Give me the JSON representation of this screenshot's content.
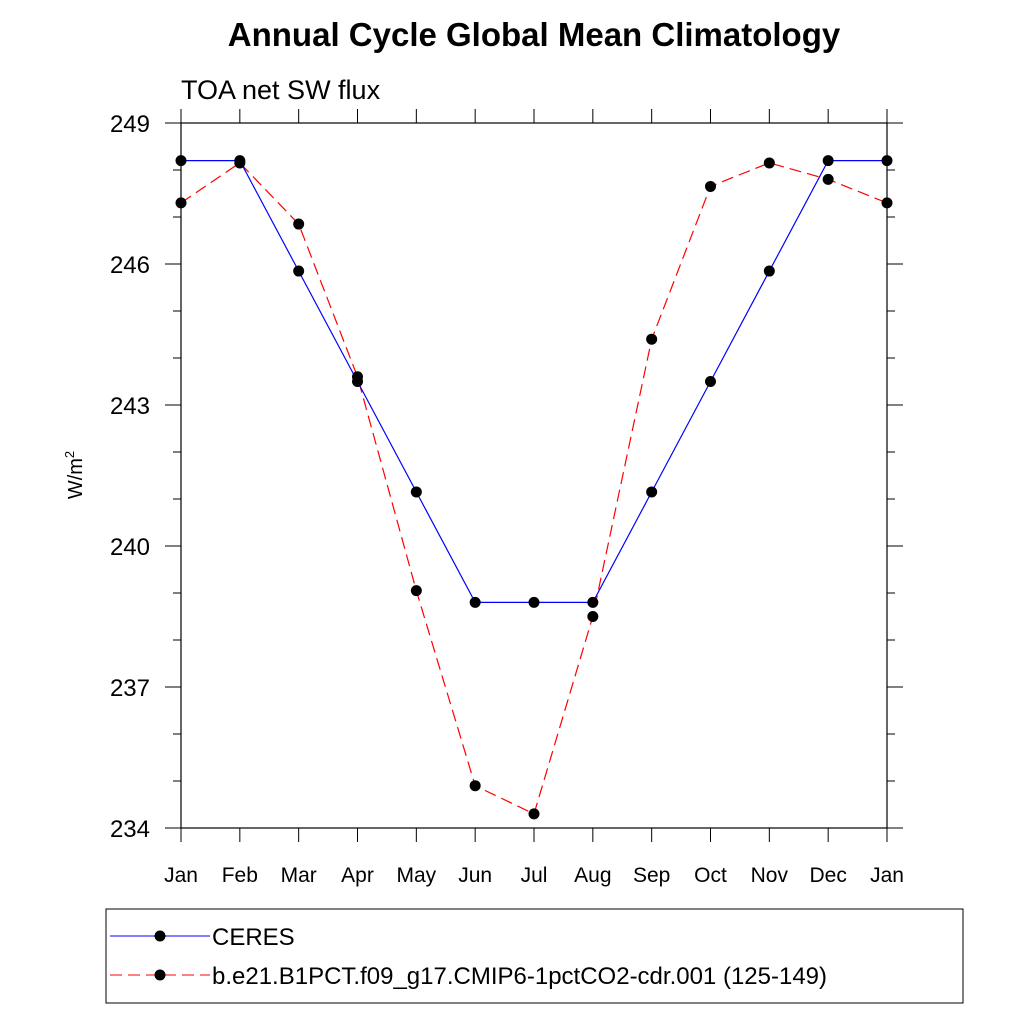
{
  "chart_data": {
    "type": "line",
    "title": "Annual Cycle Global Mean Climatology",
    "subtitle": "TOA net SW flux",
    "ylabel": "W/m",
    "ylabel_superscript": "2",
    "ylim": [
      234,
      249
    ],
    "yticks": [
      234,
      237,
      240,
      243,
      246,
      249
    ],
    "y_minor_step": 1,
    "categories": [
      "Jan",
      "Feb",
      "Mar",
      "Apr",
      "May",
      "Jun",
      "Jul",
      "Aug",
      "Sep",
      "Oct",
      "Nov",
      "Dec",
      "Jan"
    ],
    "series": [
      {
        "name": "CERES",
        "color": "#0000ff",
        "dash": "solid",
        "values": [
          248.2,
          248.2,
          245.85,
          243.5,
          241.15,
          238.8,
          238.8,
          238.8,
          241.15,
          243.5,
          245.85,
          248.2,
          248.2
        ]
      },
      {
        "name": "b.e21.B1PCT.f09_g17.CMIP6-1pctCO2-cdr.001 (125-149)",
        "color": "#ff0000",
        "dash": "dashed",
        "values": [
          247.3,
          248.15,
          246.85,
          243.6,
          239.05,
          234.9,
          234.3,
          238.5,
          244.4,
          247.65,
          248.15,
          247.8,
          247.3
        ]
      }
    ],
    "legend_position": "bottom"
  }
}
